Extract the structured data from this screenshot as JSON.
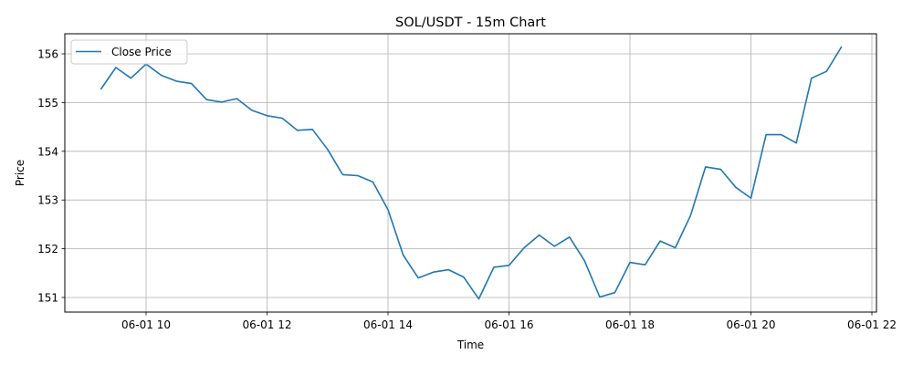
{
  "chart_data": {
    "type": "line",
    "title": "SOL/USDT - 15m Chart",
    "xlabel": "Time",
    "ylabel": "Price",
    "x_unit": "time",
    "x": [
      "09:15",
      "09:30",
      "09:45",
      "10:00",
      "10:15",
      "10:30",
      "10:45",
      "11:00",
      "11:15",
      "11:30",
      "11:45",
      "12:00",
      "12:15",
      "12:30",
      "12:45",
      "13:00",
      "13:15",
      "13:30",
      "13:45",
      "14:00",
      "14:15",
      "14:30",
      "14:45",
      "15:00",
      "15:15",
      "15:30",
      "15:45",
      "16:00",
      "16:15",
      "16:30",
      "16:45",
      "17:00",
      "17:15",
      "17:30",
      "17:45",
      "18:00",
      "18:15",
      "18:30",
      "18:45",
      "19:00",
      "19:15",
      "19:30",
      "19:45",
      "20:00",
      "20:15",
      "20:30",
      "20:45",
      "21:00",
      "21:15",
      "21:30"
    ],
    "series": [
      {
        "name": "Close Price",
        "color": "#1f77b4",
        "values": [
          155.27,
          155.72,
          155.5,
          155.79,
          155.56,
          155.44,
          155.39,
          155.06,
          155.01,
          155.08,
          154.84,
          154.73,
          154.68,
          154.43,
          154.45,
          154.04,
          153.52,
          153.5,
          153.37,
          152.8,
          151.87,
          151.4,
          151.52,
          151.57,
          151.42,
          150.97,
          151.62,
          151.66,
          152.02,
          152.28,
          152.05,
          152.24,
          151.75,
          151.01,
          151.1,
          151.72,
          151.67,
          152.16,
          152.02,
          152.68,
          153.68,
          153.63,
          153.26,
          153.04,
          154.34,
          154.34,
          154.17,
          155.5,
          155.64,
          156.15
        ]
      }
    ],
    "x_ticks": [
      "06-01 10",
      "06-01 12",
      "06-01 14",
      "06-01 16",
      "06-01 18",
      "06-01 20",
      "06-01 22"
    ],
    "y_ticks": [
      "151",
      "152",
      "153",
      "154",
      "155",
      "156"
    ],
    "ylim": [
      150.7,
      156.4
    ],
    "grid": true,
    "legend": "top-left"
  }
}
